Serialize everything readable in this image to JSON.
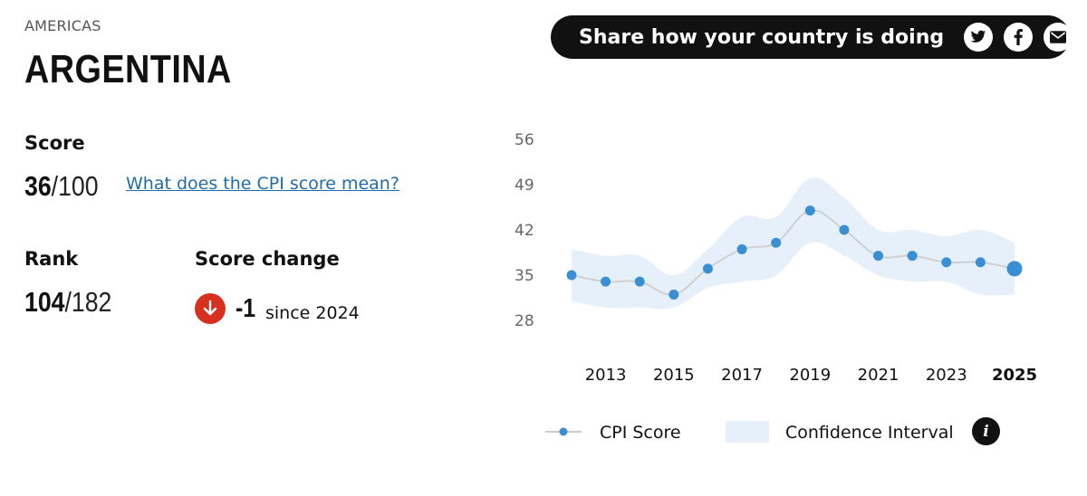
{
  "header": {
    "region": "AMERICAS",
    "country": "ARGENTINA"
  },
  "share": {
    "text": "Share how your country is doing",
    "icons": [
      "twitter-icon",
      "facebook-icon",
      "email-icon"
    ]
  },
  "score": {
    "label": "Score",
    "value": "36",
    "max": "/100",
    "link": "What does the CPI score mean?"
  },
  "rank": {
    "label": "Rank",
    "value": "104",
    "max": "/182"
  },
  "change": {
    "label": "Score change",
    "value": "-1",
    "since": "since 2024",
    "direction_icon": "arrow-down-icon"
  },
  "colors": {
    "accent_link": "#1f6ca8",
    "point": "#3a8fd3",
    "band": "#e6f0fa",
    "down": "#d7301f"
  },
  "chart_data": {
    "type": "line",
    "x": [
      2012,
      2013,
      2014,
      2015,
      2016,
      2017,
      2018,
      2019,
      2020,
      2021,
      2022,
      2023,
      2024,
      2025
    ],
    "series": [
      {
        "name": "CPI Score",
        "values": [
          35,
          34,
          34,
          32,
          36,
          39,
          40,
          45,
          42,
          38,
          38,
          37,
          37,
          36
        ]
      }
    ],
    "confidence_interval": {
      "lower": [
        31,
        30,
        30,
        30,
        33,
        34,
        35,
        40,
        38,
        35,
        34,
        34,
        32,
        32
      ],
      "upper": [
        39,
        38,
        38,
        35,
        39,
        44,
        44,
        50,
        47,
        42,
        42,
        41,
        42,
        40
      ]
    },
    "ylim": [
      28,
      56
    ],
    "yticks": [
      28,
      35,
      42,
      49,
      56
    ],
    "xticks": [
      2013,
      2015,
      2017,
      2019,
      2021,
      2023,
      2025
    ],
    "highlight_x": 2025,
    "legend": [
      "CPI Score",
      "Confidence Interval"
    ],
    "legend_position": "bottom"
  }
}
